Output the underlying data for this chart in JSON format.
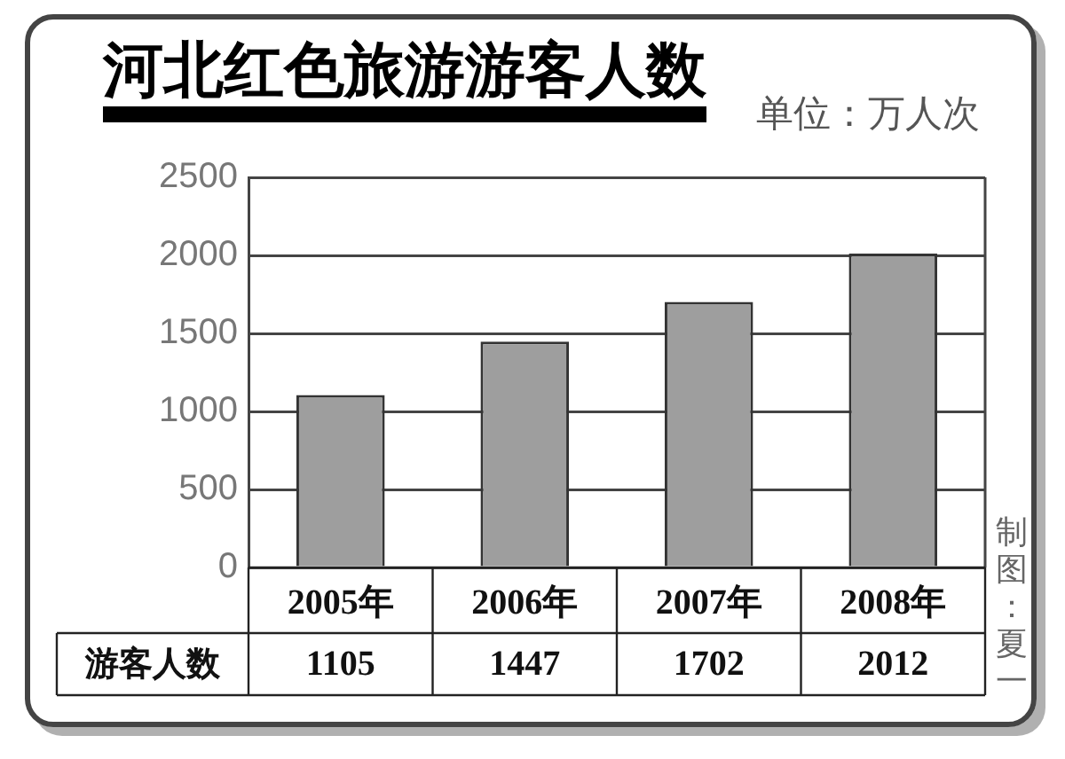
{
  "chart_data": {
    "type": "bar",
    "title": "河北红色旅游游客人数",
    "subtitle": "单位：万人次",
    "annotations": [
      "制图：夏一"
    ],
    "categories": [
      "2005年",
      "2006年",
      "2007年",
      "2008年"
    ],
    "series": [
      {
        "name": "游客人数",
        "color": "#9e9e9e",
        "values": [
          1105,
          1447,
          1702,
          2012
        ]
      }
    ],
    "ylim": [
      0,
      2500
    ],
    "yticks": [
      0,
      500,
      1000,
      1500,
      2000,
      2500
    ],
    "grid": "y",
    "data_labels": true
  }
}
